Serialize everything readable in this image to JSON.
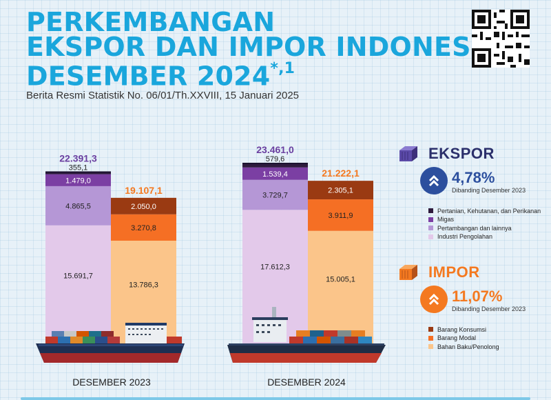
{
  "header": {
    "title_line1": "PERKEMBANGAN",
    "title_line2": "EKSPOR DAN IMPOR INDONESIA",
    "title_line3": "DESEMBER 2024",
    "title_mark": "*,1",
    "subtitle": "Berita Resmi Statistik No. 06/01/Th.XXVIII, 15 Januari 2025"
  },
  "chart_data": {
    "type": "bar",
    "stacked": true,
    "categories": [
      "DESEMBER 2023",
      "DESEMBER 2024"
    ],
    "groups": [
      {
        "name": "EKSPOR",
        "totals": [
          "22.391,3",
          "23.461,0"
        ],
        "total_values": [
          22391.3,
          23461.0
        ],
        "series": [
          {
            "name": "Industri Pengolahan",
            "values": [
              15691.7,
              17612.3
            ],
            "labels": [
              "15.691,7",
              "17.612,3"
            ],
            "color": "#e3c9ea"
          },
          {
            "name": "Pertambangan dan lainnya",
            "values": [
              4865.5,
              3729.7
            ],
            "labels": [
              "4.865,5",
              "3.729,7"
            ],
            "color": "#b597d6"
          },
          {
            "name": "Migas",
            "values": [
              1479.0,
              1539.4
            ],
            "labels": [
              "1.479,0",
              "1.539,4"
            ],
            "color": "#7b3fa3"
          },
          {
            "name": "Pertanian, Kehutanan, dan Perikanan",
            "values": [
              355.1,
              579.6
            ],
            "labels": [
              "355,1",
              "579,6"
            ],
            "color": "#2e1b3d"
          }
        ]
      },
      {
        "name": "IMPOR",
        "totals": [
          "19.107,1",
          "21.222,1"
        ],
        "total_values": [
          19107.1,
          21222.1
        ],
        "series": [
          {
            "name": "Bahan Baku/Penolong",
            "values": [
              13786.3,
              15005.1
            ],
            "labels": [
              "13.786,3",
              "15.005,1"
            ],
            "color": "#fbc58a"
          },
          {
            "name": "Barang Modal",
            "values": [
              3270.8,
              3911.9
            ],
            "labels": [
              "3.270,8",
              "3.911,9"
            ],
            "color": "#f56f24"
          },
          {
            "name": "Barang Konsumsi",
            "values": [
              2050.0,
              2305.1
            ],
            "labels": [
              "2.050,0",
              "2.305,1"
            ],
            "color": "#9a3a12"
          }
        ]
      }
    ],
    "legend": "right"
  },
  "ekspor": {
    "label": "EKSPOR",
    "percent": "4,78%",
    "comparison": "Dibanding Desember 2023",
    "color": "#6a3fa0",
    "badge_color": "#2c4f9e",
    "icon": "double-chevron-up-icon",
    "legend": [
      {
        "label": "Pertanian, Kehutanan, dan Perikanan",
        "color": "#2e1b3d"
      },
      {
        "label": "Migas",
        "color": "#7b3fa3"
      },
      {
        "label": "Pertambangan dan lainnya",
        "color": "#b597d6"
      },
      {
        "label": "Industri Pengolahan",
        "color": "#e3c9ea"
      }
    ]
  },
  "impor": {
    "label": "IMPOR",
    "percent": "11,07%",
    "comparison": "Dibanding Desember 2023",
    "color": "#f47920",
    "badge_color": "#f47920",
    "icon": "double-chevron-up-icon",
    "legend": [
      {
        "label": "Barang Konsumsi",
        "color": "#9a3a12"
      },
      {
        "label": "Barang Modal",
        "color": "#f56f24"
      },
      {
        "label": "Bahan Baku/Penolong",
        "color": "#fbc58a"
      }
    ]
  },
  "colors": {
    "title": "#1aa6dc",
    "ekspor_total": "#6a3fa0",
    "impor_total": "#f47920"
  }
}
